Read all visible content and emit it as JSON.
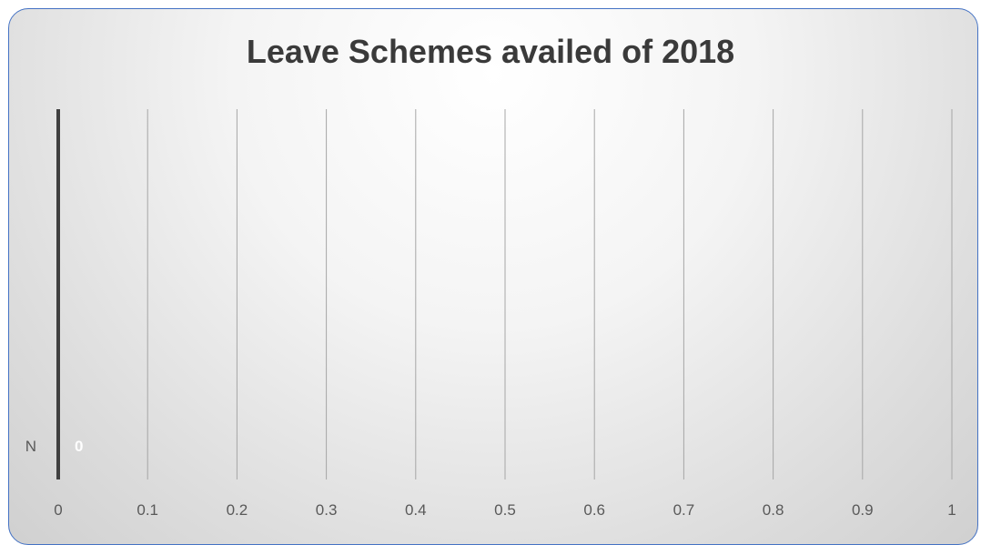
{
  "chart_data": {
    "type": "bar",
    "orientation": "horizontal",
    "title": "Leave Schemes availed of 2018",
    "categories": [
      "N"
    ],
    "values": [
      0
    ],
    "data_labels": [
      "0"
    ],
    "x_ticks": [
      "0",
      "0.1",
      "0.2",
      "0.3",
      "0.4",
      "0.5",
      "0.6",
      "0.7",
      "0.8",
      "0.9",
      "1"
    ],
    "xlim": [
      0,
      1
    ],
    "grid": true,
    "legend": "none",
    "colors": {
      "frame_border": "#4472c4",
      "gridline": "#a6a6a6",
      "axis_line": "#404040",
      "tick_text": "#595959",
      "title_text": "#3a3a3a",
      "data_label": "#ffffff"
    }
  }
}
